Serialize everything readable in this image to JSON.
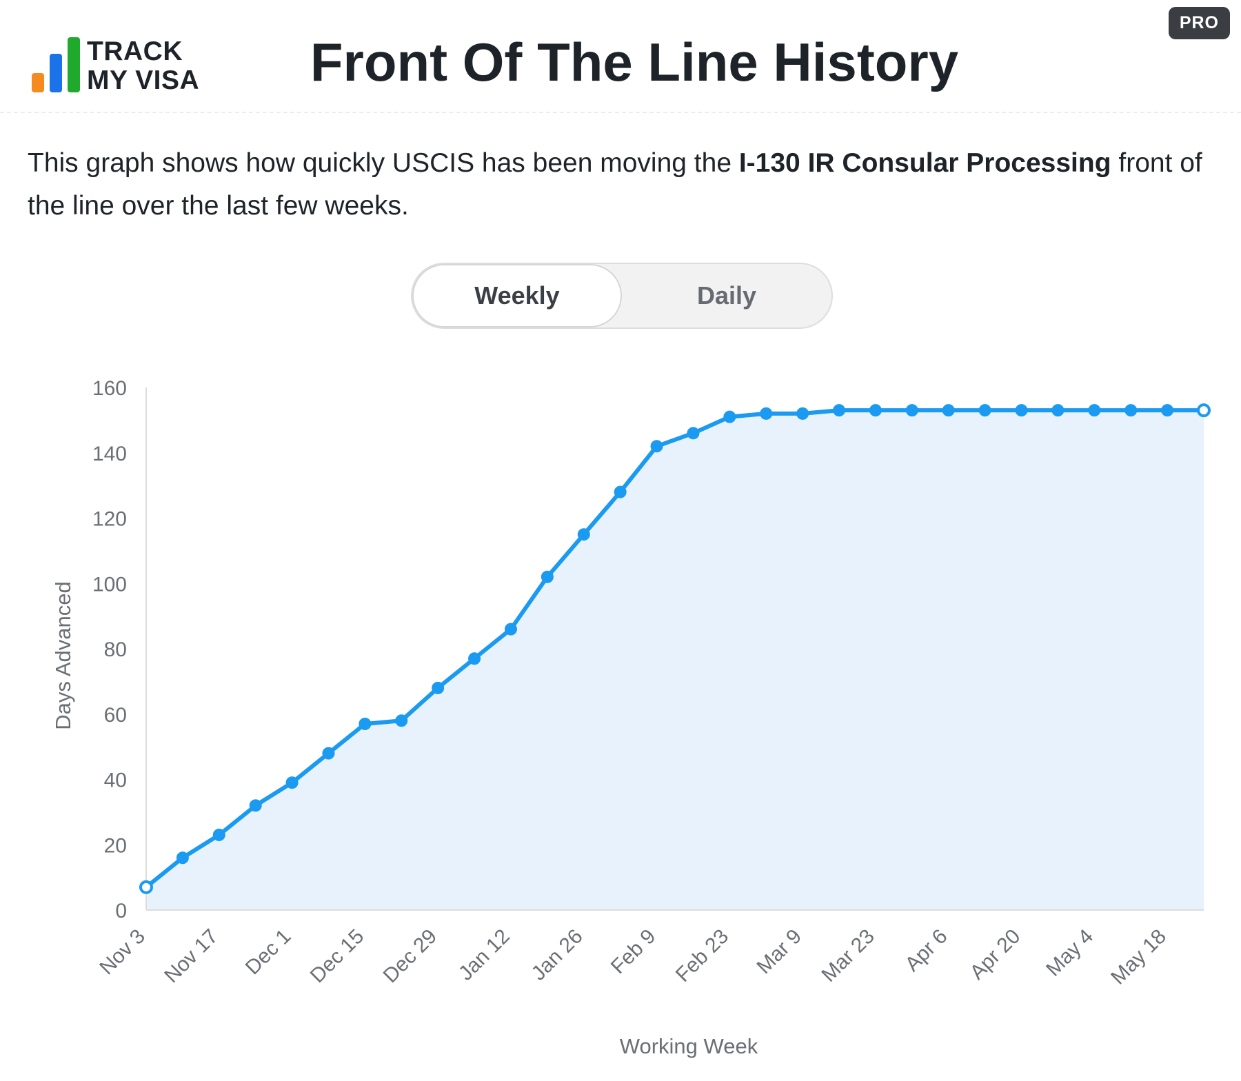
{
  "header": {
    "logo_lines": [
      "TRACK",
      "MY VISA"
    ],
    "title": "Front Of The Line History",
    "badge": "PRO"
  },
  "description": {
    "before": "This graph shows how quickly USCIS has been moving the ",
    "bold": "I-130 IR Consular Processing",
    "after": " front of the line over the last few weeks."
  },
  "toggle": {
    "options": [
      "Weekly",
      "Daily"
    ],
    "selected": "Weekly"
  },
  "colors": {
    "line": "#1a9af0",
    "fill": "#e7f2fd",
    "axis": "#dddddd",
    "tick_text": "#6b6f75"
  },
  "chart_data": {
    "type": "area",
    "title": "",
    "xlabel": "Working Week",
    "ylabel": "Days Advanced",
    "ylim": [
      0,
      160
    ],
    "yticks": [
      0,
      20,
      40,
      60,
      80,
      100,
      120,
      140,
      160
    ],
    "grid": false,
    "x": [
      "Nov 3",
      "Nov 10",
      "Nov 17",
      "Nov 24",
      "Dec 1",
      "Dec 8",
      "Dec 15",
      "Dec 22",
      "Dec 29",
      "Jan 5",
      "Jan 12",
      "Jan 19",
      "Jan 26",
      "Feb 2",
      "Feb 9",
      "Feb 16",
      "Feb 23",
      "Mar 2",
      "Mar 9",
      "Mar 16",
      "Mar 23",
      "Mar 30",
      "Apr 6",
      "Apr 13",
      "Apr 20",
      "Apr 27",
      "May 4",
      "May 11",
      "May 18",
      "May 25"
    ],
    "x_tick_labels": [
      "Nov 3",
      "Nov 17",
      "Dec 1",
      "Dec 15",
      "Dec 29",
      "Jan 12",
      "Jan 26",
      "Feb 9",
      "Feb 23",
      "Mar 9",
      "Mar 23",
      "Apr 6",
      "Apr 20",
      "May 4",
      "May 18"
    ],
    "series": [
      {
        "values": [
          7,
          16,
          23,
          32,
          39,
          48,
          57,
          58,
          68,
          77,
          86,
          102,
          115,
          128,
          142,
          146,
          151,
          152,
          152,
          153,
          153,
          153,
          153,
          153,
          153,
          153,
          153,
          153,
          153,
          153
        ]
      }
    ]
  }
}
